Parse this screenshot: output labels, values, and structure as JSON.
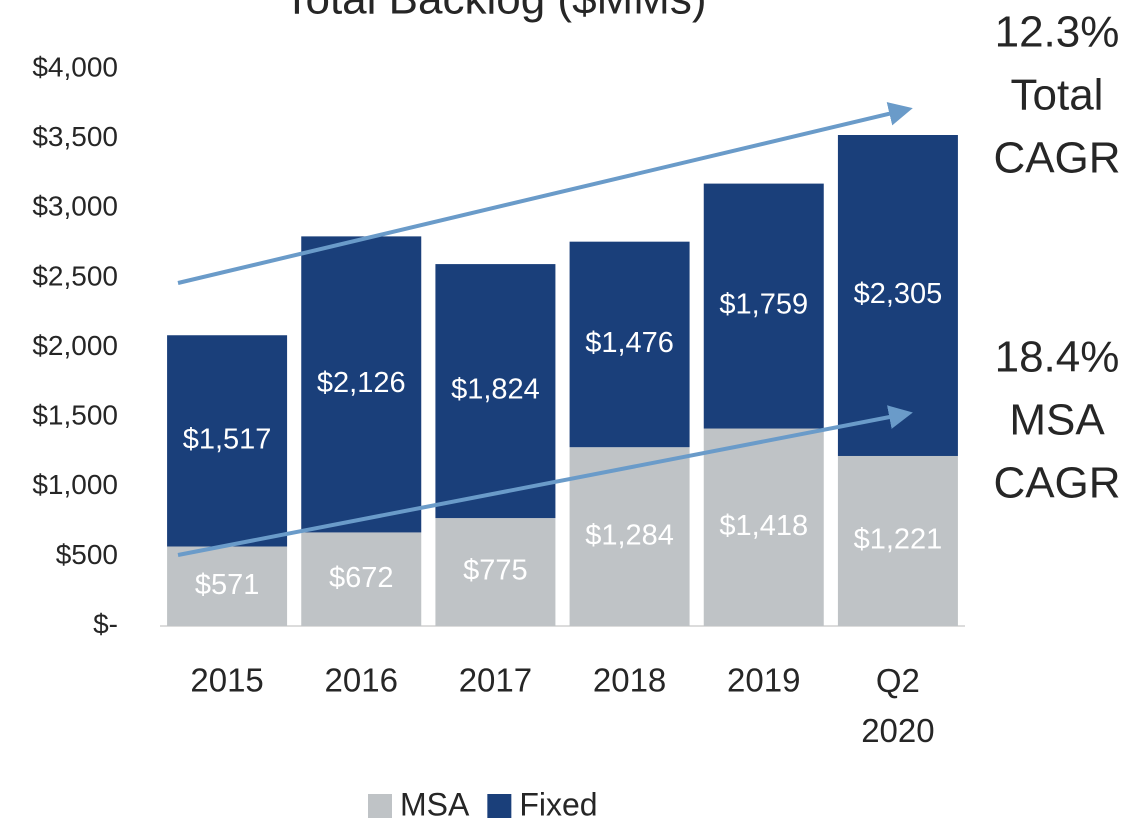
{
  "chart_data": {
    "type": "stacked_bar",
    "title": "Total Backlog ($MMs)",
    "categories": [
      "2015",
      "2016",
      "2017",
      "2018",
      "2019",
      "Q2 2020"
    ],
    "series": [
      {
        "name": "MSA",
        "color": "#bfc3c6",
        "values": [
          571,
          672,
          775,
          1284,
          1418,
          1221
        ],
        "value_labels": [
          "$571",
          "$672",
          "$775",
          "$1,284",
          "$1,418",
          "$1,221"
        ]
      },
      {
        "name": "Fixed",
        "color": "#1a3f7a",
        "values": [
          1517,
          2126,
          1824,
          1476,
          1759,
          2305
        ],
        "value_labels": [
          "$1,517",
          "$2,126",
          "$1,824",
          "$1,476",
          "$1,759",
          "$2,305"
        ]
      }
    ],
    "ylim": [
      0,
      4000
    ],
    "yticks": [
      {
        "value": 0,
        "label": "$-"
      },
      {
        "value": 500,
        "label": "$500"
      },
      {
        "value": 1000,
        "label": "$1,000"
      },
      {
        "value": 1500,
        "label": "$1,500"
      },
      {
        "value": 2000,
        "label": "$2,000"
      },
      {
        "value": 2500,
        "label": "$2,500"
      },
      {
        "value": 3000,
        "label": "$3,000"
      },
      {
        "value": 3500,
        "label": "$3,500"
      },
      {
        "value": 4000,
        "label": "$4,000"
      }
    ],
    "grid": false,
    "legend": "bottom",
    "annotations": [
      [
        "12.3%",
        "Total",
        "CAGR"
      ],
      [
        "18.4%",
        "MSA",
        "CAGR"
      ]
    ]
  }
}
